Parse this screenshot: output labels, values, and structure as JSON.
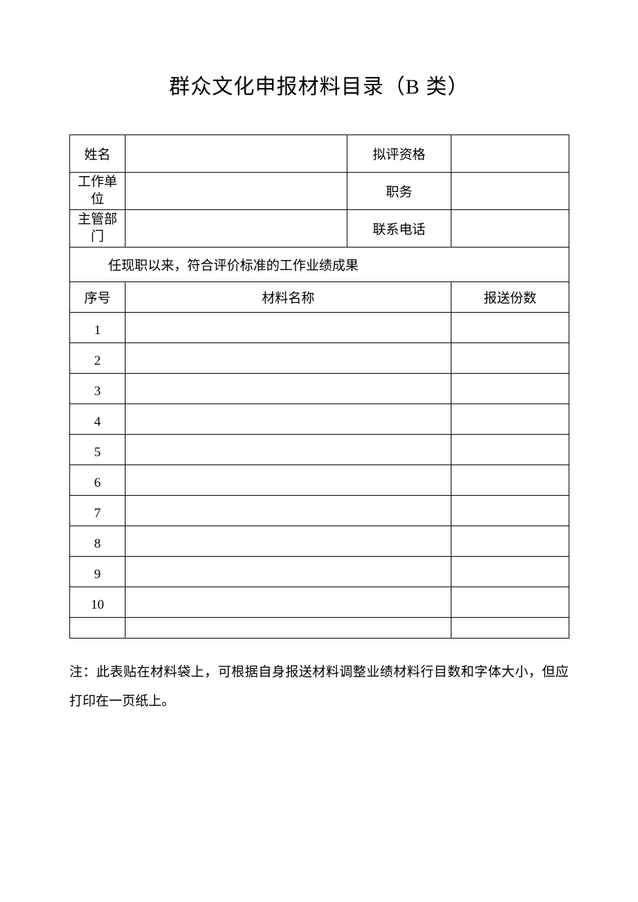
{
  "title": "群众文化申报材料目录（B 类）",
  "info": {
    "name_label": "姓名",
    "name_value": "",
    "qualification_label": "拟评资格",
    "qualification_value": "",
    "workunit_label_line1": "工作单",
    "workunit_label_line2": "位",
    "workunit_value": "",
    "position_label": "职务",
    "position_value": "",
    "department_label_line1": "主管部",
    "department_label_line2": "门",
    "department_value": "",
    "phone_label": "联系电话",
    "phone_value": ""
  },
  "section_title": "任现职以来，符合评价标准的工作业绩成果",
  "columns": {
    "seq": "序号",
    "material": "材料名称",
    "copies": "报送份数"
  },
  "rows": [
    {
      "seq": "1",
      "material": "",
      "copies": ""
    },
    {
      "seq": "2",
      "material": "",
      "copies": ""
    },
    {
      "seq": "3",
      "material": "",
      "copies": ""
    },
    {
      "seq": "4",
      "material": "",
      "copies": ""
    },
    {
      "seq": "5",
      "material": "",
      "copies": ""
    },
    {
      "seq": "6",
      "material": "",
      "copies": ""
    },
    {
      "seq": "7",
      "material": "",
      "copies": ""
    },
    {
      "seq": "8",
      "material": "",
      "copies": ""
    },
    {
      "seq": "9",
      "material": "",
      "copies": ""
    },
    {
      "seq": "10",
      "material": "",
      "copies": ""
    }
  ],
  "note": "注：此表贴在材料袋上，可根据自身报送材料调整业绩材料行目数和字体大小，但应打印在一页纸上。",
  "layout": {
    "col_label_width": 80,
    "col_value1_width": 320,
    "col_label2_width": 150,
    "col_value2_width": 170
  }
}
